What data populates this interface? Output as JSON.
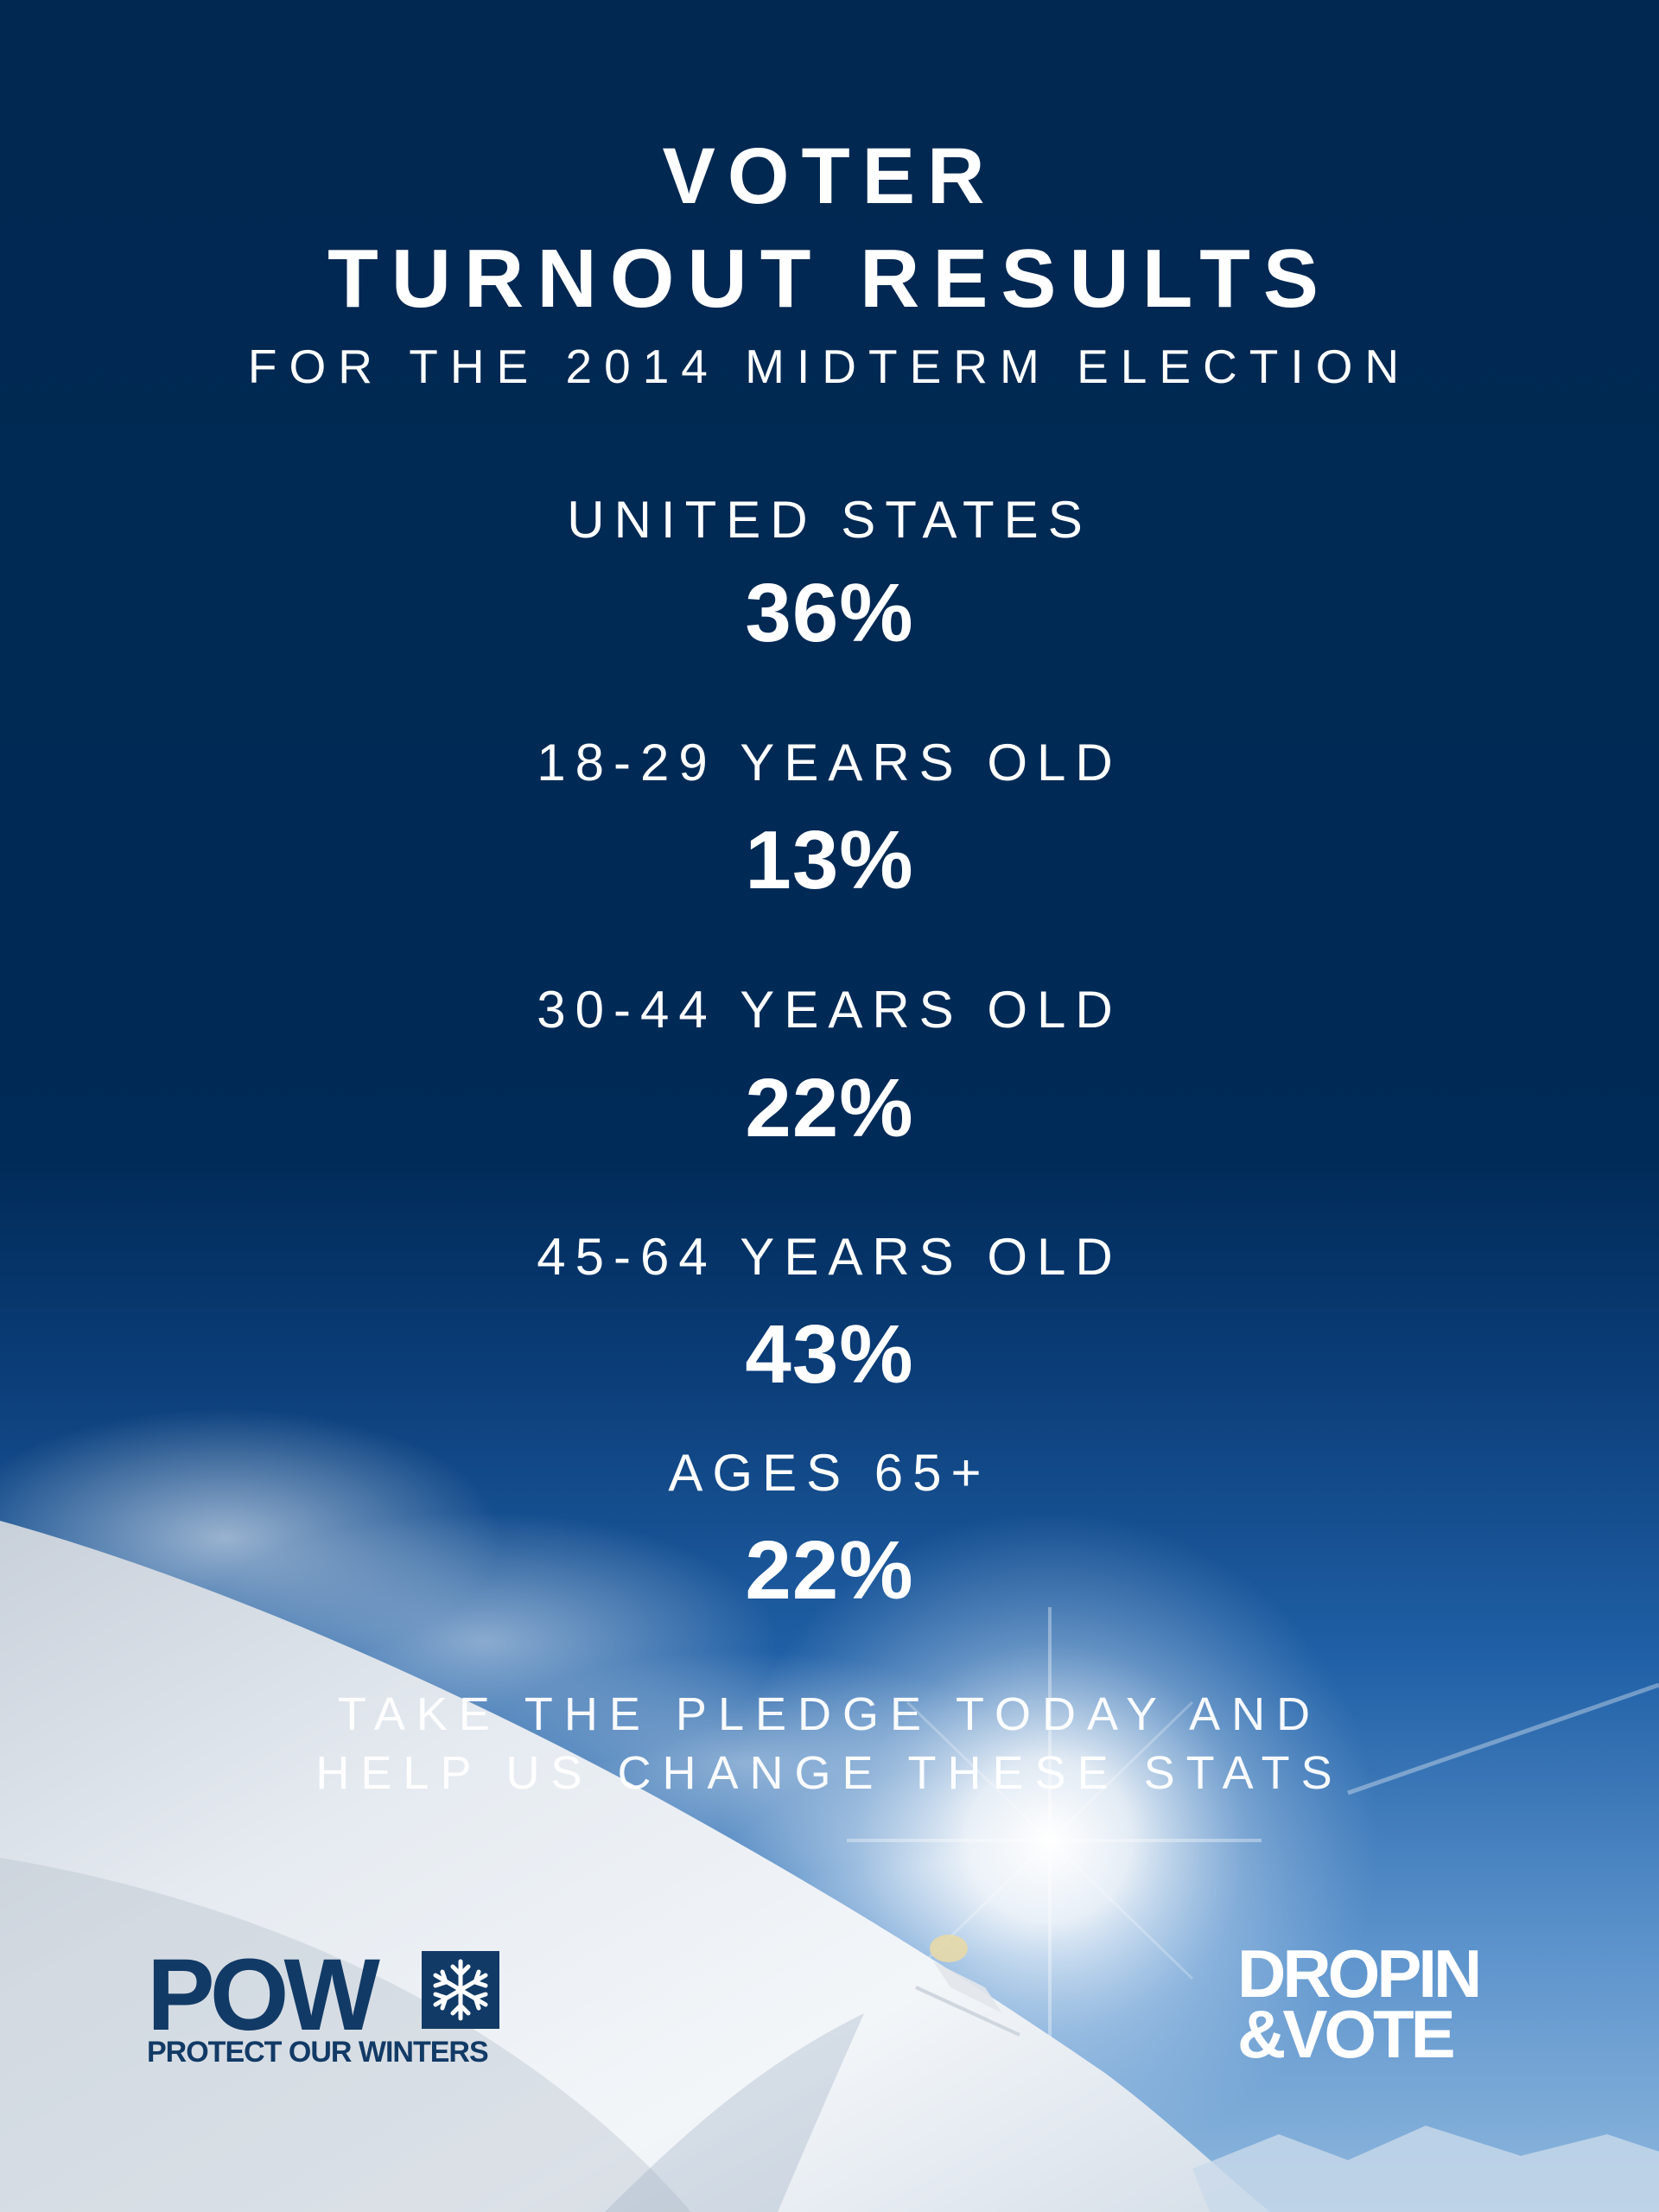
{
  "poster": {
    "title_line_1": "VOTER",
    "title_line_2": "TURNOUT RESULTS",
    "subtitle": "FOR THE 2014 MIDTERM ELECTION",
    "stats": [
      {
        "label": "UNITED STATES",
        "value": "36%"
      },
      {
        "label": "18-29 YEARS OLD",
        "value": "13%"
      },
      {
        "label": "30-44 YEARS OLD",
        "value": "22%"
      },
      {
        "label": "45-64 YEARS OLD",
        "value": "43%"
      },
      {
        "label": "AGES 65+",
        "value": "22%"
      }
    ],
    "pledge_line_1": "TAKE THE PLEDGE TODAY AND",
    "pledge_line_2": "HELP US CHANGE THESE STATS"
  },
  "logos": {
    "pow_wordmark": "POW",
    "pow_tagline": "PROTECT OUR WINTERS",
    "dropin_line_1": "DROPIN",
    "dropin_line_2": "&VOTE"
  },
  "colors": {
    "background_navy": "#002850",
    "sky_blue": "#1e5aa0",
    "snow": "#eef2f6",
    "pow_logo": "#123a66",
    "text": "#ffffff"
  }
}
